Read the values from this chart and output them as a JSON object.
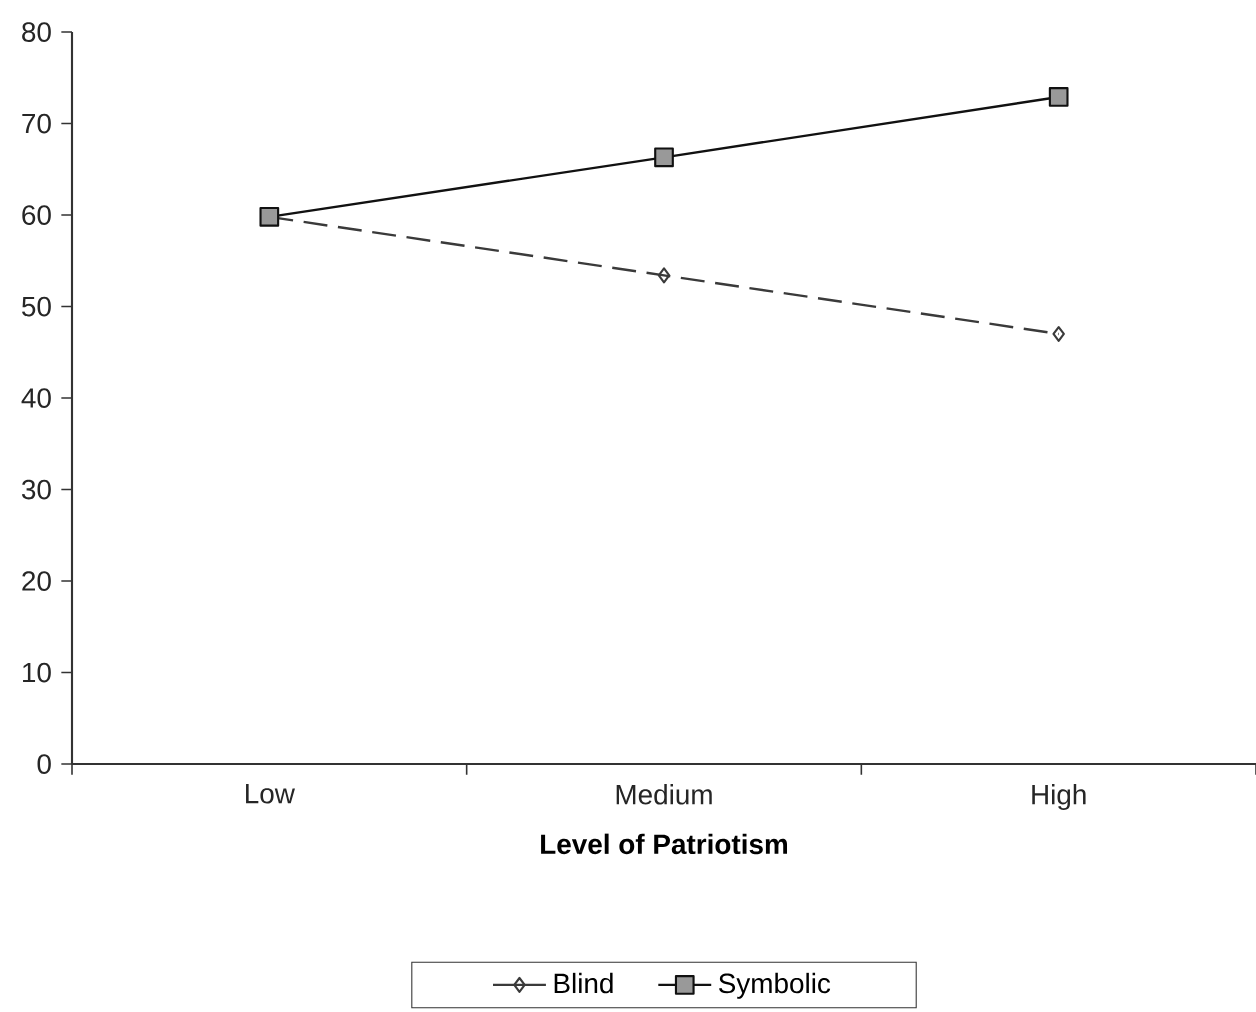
{
  "chart_data": {
    "type": "line",
    "xlabel": "Level of Patriotism",
    "categories": [
      "Low",
      "Medium",
      "High"
    ],
    "series": [
      {
        "name": "Blind",
        "color": "#3a3a3a",
        "values": [
          59.8,
          53.4,
          47.0
        ],
        "marker": "diamond",
        "line_style": "dashed"
      },
      {
        "name": "Symbolic",
        "color": "#111111",
        "values": [
          59.8,
          66.3,
          72.9
        ],
        "marker": "square",
        "line_style": "solid"
      }
    ],
    "ylim": [
      0,
      80
    ],
    "yticks": [
      0,
      10,
      20,
      30,
      40,
      50,
      60,
      70,
      80
    ],
    "grid": false,
    "legend": "bottom"
  }
}
